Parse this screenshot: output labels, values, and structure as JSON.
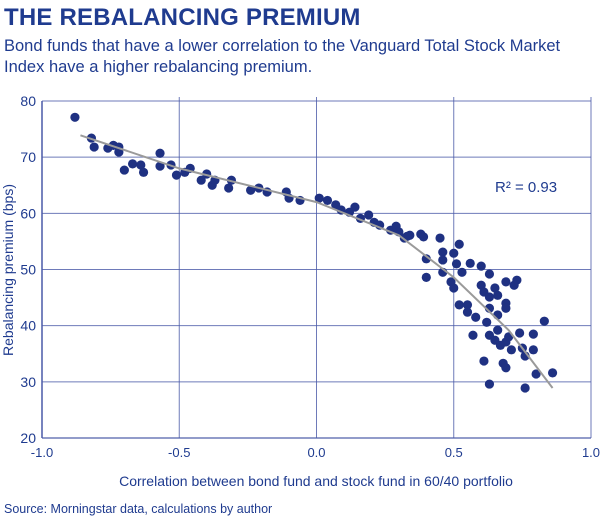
{
  "title": "THE REBALANCING PREMIUM",
  "subtitle": "Bond funds that have a lower correlation to the Vanguard Total Stock Market Index have a higher rebalancing premium.",
  "source": "Source: Morningstar data, calculations by author",
  "colors": {
    "points": "#1f3182",
    "trendline": "#9a9a9a",
    "grid": "#4a5aa8",
    "text": "#1f3b8f"
  },
  "chart_data": {
    "type": "scatter",
    "xlabel": "Correlation between bond fund and stock fund in 60/40 portfolio",
    "ylabel": "Rebalancing premium (bps)",
    "xlim": [
      -1.0,
      1.0
    ],
    "ylim": [
      20,
      80
    ],
    "xticks": [
      "-1.0",
      "-0.5",
      "0.0",
      "0.5",
      "1.0"
    ],
    "yticks": [
      "20",
      "30",
      "40",
      "50",
      "60",
      "70",
      "80"
    ],
    "grid": true,
    "annotation": "R² = 0.93",
    "trendline": [
      [
        -0.86,
        73.9
      ],
      [
        -0.5,
        68.0
      ],
      [
        0,
        62.0
      ],
      [
        0.3,
        56.1
      ],
      [
        0.5,
        48.6
      ],
      [
        0.7,
        39.2
      ],
      [
        0.86,
        28.9
      ]
    ],
    "points": [
      [
        -0.88,
        77.1
      ],
      [
        -0.82,
        73.4
      ],
      [
        -0.81,
        71.8
      ],
      [
        -0.76,
        71.6
      ],
      [
        -0.74,
        72.1
      ],
      [
        -0.72,
        71.8
      ],
      [
        -0.72,
        70.9
      ],
      [
        -0.7,
        67.7
      ],
      [
        -0.67,
        68.8
      ],
      [
        -0.64,
        68.6
      ],
      [
        -0.63,
        67.3
      ],
      [
        -0.57,
        70.7
      ],
      [
        -0.57,
        68.4
      ],
      [
        -0.53,
        68.6
      ],
      [
        -0.51,
        66.8
      ],
      [
        -0.48,
        67.3
      ],
      [
        -0.46,
        68.0
      ],
      [
        -0.42,
        65.9
      ],
      [
        -0.4,
        67.0
      ],
      [
        -0.38,
        65.0
      ],
      [
        -0.37,
        65.9
      ],
      [
        -0.32,
        64.5
      ],
      [
        -0.31,
        65.9
      ],
      [
        -0.24,
        64.1
      ],
      [
        -0.21,
        64.5
      ],
      [
        -0.18,
        63.8
      ],
      [
        -0.11,
        63.8
      ],
      [
        -0.1,
        62.7
      ],
      [
        -0.06,
        62.3
      ],
      [
        0.01,
        62.7
      ],
      [
        0.04,
        62.3
      ],
      [
        0.07,
        61.5
      ],
      [
        0.09,
        60.6
      ],
      [
        0.12,
        60.2
      ],
      [
        0.14,
        61.1
      ],
      [
        0.16,
        59.1
      ],
      [
        0.19,
        59.7
      ],
      [
        0.21,
        58.4
      ],
      [
        0.23,
        57.9
      ],
      [
        0.27,
        57.0
      ],
      [
        0.29,
        57.7
      ],
      [
        0.3,
        56.7
      ],
      [
        0.32,
        55.6
      ],
      [
        0.34,
        56.1
      ],
      [
        0.33,
        55.9
      ],
      [
        0.38,
        56.3
      ],
      [
        0.39,
        55.8
      ],
      [
        0.45,
        55.6
      ],
      [
        0.52,
        54.5
      ],
      [
        0.4,
        51.9
      ],
      [
        0.4,
        48.6
      ],
      [
        0.46,
        53.1
      ],
      [
        0.46,
        51.7
      ],
      [
        0.46,
        49.5
      ],
      [
        0.5,
        52.9
      ],
      [
        0.51,
        51.0
      ],
      [
        0.53,
        49.5
      ],
      [
        0.56,
        51.1
      ],
      [
        0.6,
        50.6
      ],
      [
        0.63,
        49.2
      ],
      [
        0.49,
        47.8
      ],
      [
        0.5,
        46.7
      ],
      [
        0.52,
        43.7
      ],
      [
        0.55,
        43.7
      ],
      [
        0.55,
        42.4
      ],
      [
        0.58,
        41.5
      ],
      [
        0.6,
        47.2
      ],
      [
        0.61,
        46.0
      ],
      [
        0.63,
        45.1
      ],
      [
        0.65,
        46.7
      ],
      [
        0.66,
        45.4
      ],
      [
        0.69,
        47.8
      ],
      [
        0.73,
        48.1
      ],
      [
        0.72,
        47.2
      ],
      [
        0.69,
        44.0
      ],
      [
        0.69,
        43.1
      ],
      [
        0.63,
        43.1
      ],
      [
        0.66,
        41.9
      ],
      [
        0.62,
        40.6
      ],
      [
        0.66,
        39.2
      ],
      [
        0.63,
        38.3
      ],
      [
        0.65,
        37.4
      ],
      [
        0.67,
        36.5
      ],
      [
        0.69,
        37.1
      ],
      [
        0.7,
        38.0
      ],
      [
        0.57,
        38.3
      ],
      [
        0.74,
        38.7
      ],
      [
        0.79,
        38.5
      ],
      [
        0.83,
        40.8
      ],
      [
        0.71,
        35.7
      ],
      [
        0.75,
        36.0
      ],
      [
        0.76,
        34.6
      ],
      [
        0.79,
        35.7
      ],
      [
        0.61,
        33.7
      ],
      [
        0.68,
        33.3
      ],
      [
        0.69,
        32.5
      ],
      [
        0.8,
        31.4
      ],
      [
        0.86,
        31.6
      ],
      [
        0.63,
        29.6
      ],
      [
        0.76,
        28.9
      ]
    ]
  }
}
